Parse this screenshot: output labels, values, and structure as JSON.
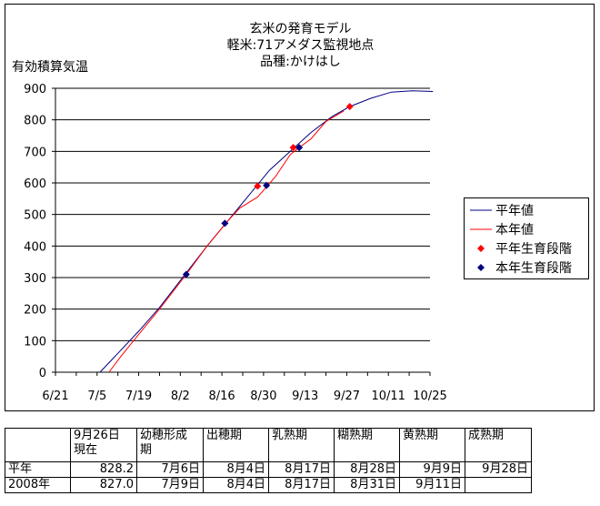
{
  "chart": {
    "title_lines": [
      "玄米の発育モデル",
      "軽米:71アメダス監視地点",
      "品種:かけはし"
    ],
    "ylabel": "有効積算気温",
    "legend": [
      {
        "label": "平年値",
        "color": "#000080",
        "kind": "line"
      },
      {
        "label": "本年値",
        "color": "#ff0000",
        "kind": "line"
      },
      {
        "label": "平年生育段階",
        "color": "#ff0000",
        "kind": "diamond"
      },
      {
        "label": "本年生育段階",
        "color": "#000080",
        "kind": "diamond"
      }
    ]
  },
  "chart_data": {
    "type": "line",
    "title": "玄米の発育モデル 軽米:71アメダス監視地点 品種:かけはし",
    "ylabel": "有効積算気温",
    "xlabel": "",
    "x_tick_labels": [
      "6/21",
      "7/5",
      "7/19",
      "8/2",
      "8/16",
      "8/30",
      "9/13",
      "9/27",
      "10/11",
      "10/25"
    ],
    "x_range": [
      "6/21",
      "10/25"
    ],
    "y_ticks": [
      0,
      100,
      200,
      300,
      400,
      500,
      600,
      700,
      800,
      900
    ],
    "ylim": [
      0,
      900
    ],
    "grid": "horizontal",
    "legend_position": "right",
    "series": [
      {
        "name": "平年値",
        "type": "line",
        "color": "#000080",
        "x": [
          "7/6",
          "7/12",
          "7/19",
          "7/26",
          "8/4",
          "8/11",
          "8/18",
          "8/25",
          "9/1",
          "9/8",
          "9/15",
          "9/22",
          "9/28",
          "10/5",
          "10/12",
          "10/19",
          "10/26"
        ],
        "y": [
          0,
          60,
          130,
          205,
          315,
          400,
          480,
          560,
          640,
          700,
          760,
          810,
          842,
          868,
          888,
          892,
          890
        ]
      },
      {
        "name": "本年値",
        "type": "line",
        "color": "#ff0000",
        "x": [
          "7/9",
          "7/13",
          "7/19",
          "7/26",
          "8/4",
          "8/11",
          "8/18",
          "8/22",
          "8/28",
          "9/3",
          "9/8",
          "9/11",
          "9/15",
          "9/20",
          "9/26"
        ],
        "y": [
          0,
          50,
          120,
          200,
          310,
          400,
          480,
          520,
          555,
          620,
          690,
          712,
          740,
          795,
          828
        ]
      },
      {
        "name": "平年生育段階",
        "type": "scatter",
        "color": "#ff0000",
        "x": [
          "8/28",
          "9/9",
          "9/28"
        ],
        "y": [
          590,
          712,
          842
        ]
      },
      {
        "name": "本年生育段階",
        "type": "scatter",
        "color": "#000080",
        "x": [
          "8/4",
          "8/17",
          "8/31",
          "9/11"
        ],
        "y": [
          310,
          472,
          592,
          712
        ]
      }
    ]
  },
  "table": {
    "headers": [
      "",
      "9月26日\n現在",
      "幼穂形成\n期",
      "出穂期",
      "乳熟期",
      "糊熟期",
      "黄熟期",
      "成熟期"
    ],
    "rows": [
      [
        "平年",
        "828.2",
        "7月6日",
        "8月4日",
        "8月17日",
        "8月28日",
        "9月9日",
        "9月28日"
      ],
      [
        "2008年",
        "827.0",
        "7月9日",
        "8月4日",
        "8月17日",
        "8月31日",
        "9月11日",
        ""
      ]
    ]
  }
}
